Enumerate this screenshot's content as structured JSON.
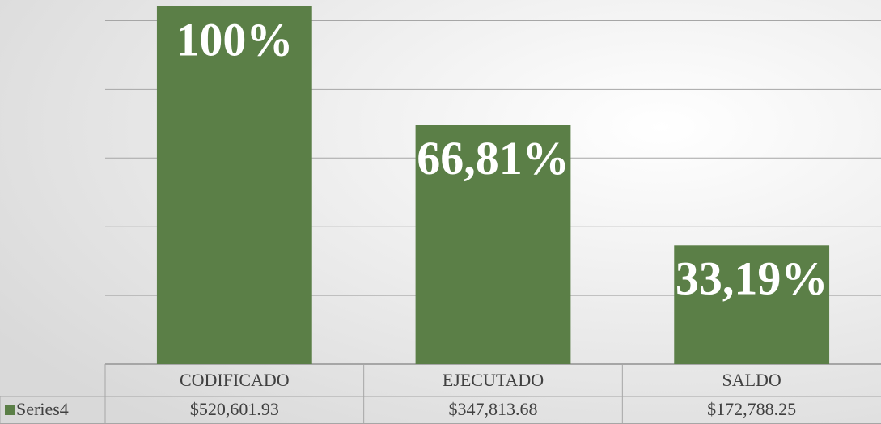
{
  "chart_data": {
    "type": "bar",
    "categories": [
      "CODIFICADO",
      "EJECUTADO",
      "SALDO"
    ],
    "series": [
      {
        "name": "Series4",
        "color": "#5b7f47",
        "values": [
          520601.93,
          347813.68,
          172788.25
        ],
        "value_labels": [
          "$520,601.93",
          "$347,813.68",
          "$172,788.25"
        ]
      }
    ],
    "annotations": [
      "100%",
      "66,81%",
      "33,19%"
    ],
    "ylim": [
      0,
      530000
    ],
    "yticks": [
      0,
      100000,
      200000,
      300000,
      400000,
      500000
    ],
    "grid": true
  }
}
